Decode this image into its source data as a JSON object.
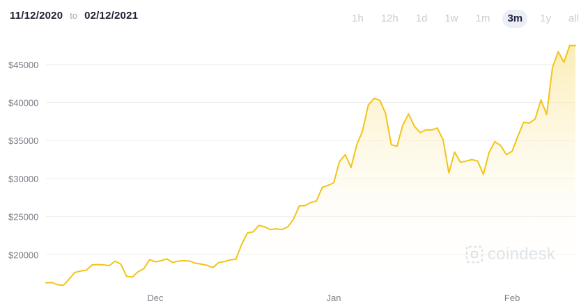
{
  "header": {
    "date_from": "11/12/2020",
    "date_separator": "to",
    "date_to": "02/12/2021"
  },
  "ranges": [
    {
      "label": "1h",
      "active": false
    },
    {
      "label": "12h",
      "active": false
    },
    {
      "label": "1d",
      "active": false
    },
    {
      "label": "1w",
      "active": false
    },
    {
      "label": "1m",
      "active": false
    },
    {
      "label": "3m",
      "active": true
    },
    {
      "label": "1y",
      "active": false
    },
    {
      "label": "all",
      "active": false
    }
  ],
  "watermark": {
    "text": "coindesk",
    "icon": "coindesk-logo-icon"
  },
  "colors": {
    "line": "#f2c417",
    "fill_top": "#fbe9a8",
    "grid": "#eeeeee",
    "axis_label": "#7a7e88"
  },
  "chart_data": {
    "type": "area",
    "title": "",
    "xlabel": "",
    "ylabel": "",
    "x_ticks": [
      "Dec",
      "Jan",
      "Feb"
    ],
    "x_tick_dates": [
      "2020-12-01",
      "2021-01-01",
      "2021-02-01"
    ],
    "xlim": [
      "2020-11-12",
      "2021-02-12"
    ],
    "y_ticks": [
      20000,
      25000,
      30000,
      35000,
      40000,
      45000
    ],
    "y_tick_labels": [
      "$20000",
      "$25000",
      "$30000",
      "$35000",
      "$40000",
      "$45000"
    ],
    "ylim": [
      16000,
      48000
    ],
    "grid": "horizontal",
    "legend": "none",
    "series": [
      {
        "x": [
          "2020-11-12",
          "2020-11-13",
          "2020-11-14",
          "2020-11-15",
          "2020-11-16",
          "2020-11-17",
          "2020-11-18",
          "2020-11-19",
          "2020-11-20",
          "2020-11-21",
          "2020-11-22",
          "2020-11-23",
          "2020-11-24",
          "2020-11-25",
          "2020-11-26",
          "2020-11-27",
          "2020-11-28",
          "2020-11-29",
          "2020-11-30",
          "2020-12-01",
          "2020-12-02",
          "2020-12-03",
          "2020-12-04",
          "2020-12-05",
          "2020-12-06",
          "2020-12-07",
          "2020-12-08",
          "2020-12-09",
          "2020-12-10",
          "2020-12-11",
          "2020-12-12",
          "2020-12-13",
          "2020-12-14",
          "2020-12-15",
          "2020-12-16",
          "2020-12-17",
          "2020-12-18",
          "2020-12-19",
          "2020-12-20",
          "2020-12-21",
          "2020-12-22",
          "2020-12-23",
          "2020-12-24",
          "2020-12-25",
          "2020-12-26",
          "2020-12-27",
          "2020-12-28",
          "2020-12-29",
          "2020-12-30",
          "2020-12-31",
          "2021-01-01",
          "2021-01-02",
          "2021-01-03",
          "2021-01-04",
          "2021-01-05",
          "2021-01-06",
          "2021-01-07",
          "2021-01-08",
          "2021-01-09",
          "2021-01-10",
          "2021-01-11",
          "2021-01-12",
          "2021-01-13",
          "2021-01-14",
          "2021-01-15",
          "2021-01-16",
          "2021-01-17",
          "2021-01-18",
          "2021-01-19",
          "2021-01-20",
          "2021-01-21",
          "2021-01-22",
          "2021-01-23",
          "2021-01-24",
          "2021-01-25",
          "2021-01-26",
          "2021-01-27",
          "2021-01-28",
          "2021-01-29",
          "2021-01-30",
          "2021-01-31",
          "2021-02-01",
          "2021-02-02",
          "2021-02-03",
          "2021-02-04",
          "2021-02-05",
          "2021-02-06",
          "2021-02-07",
          "2021-02-08",
          "2021-02-09",
          "2021-02-10",
          "2021-02-11",
          "2021-02-12"
        ],
        "values": [
          16300,
          16350,
          16050,
          15950,
          16750,
          17650,
          17850,
          17950,
          18650,
          18700,
          18650,
          18550,
          19150,
          18750,
          17150,
          17050,
          17750,
          18150,
          19350,
          19050,
          19200,
          19450,
          18950,
          19150,
          19200,
          19150,
          18850,
          18750,
          18600,
          18300,
          18950,
          19100,
          19300,
          19400,
          21350,
          22850,
          23000,
          23850,
          23650,
          23300,
          23400,
          23300,
          23650,
          24650,
          26400,
          26450,
          26850,
          27050,
          28850,
          29100,
          29450,
          32250,
          33150,
          31450,
          34450,
          36250,
          39650,
          40550,
          40300,
          38600,
          34450,
          34250,
          37050,
          38500,
          36900,
          36050,
          36400,
          36400,
          36650,
          35100,
          30750,
          33500,
          32150,
          32300,
          32500,
          32300,
          30550,
          33450,
          34850,
          34350,
          33150,
          33600,
          35600,
          37400,
          37300,
          37850,
          40350,
          38450,
          44600,
          46700,
          45300,
          47500,
          47500
        ]
      }
    ]
  }
}
